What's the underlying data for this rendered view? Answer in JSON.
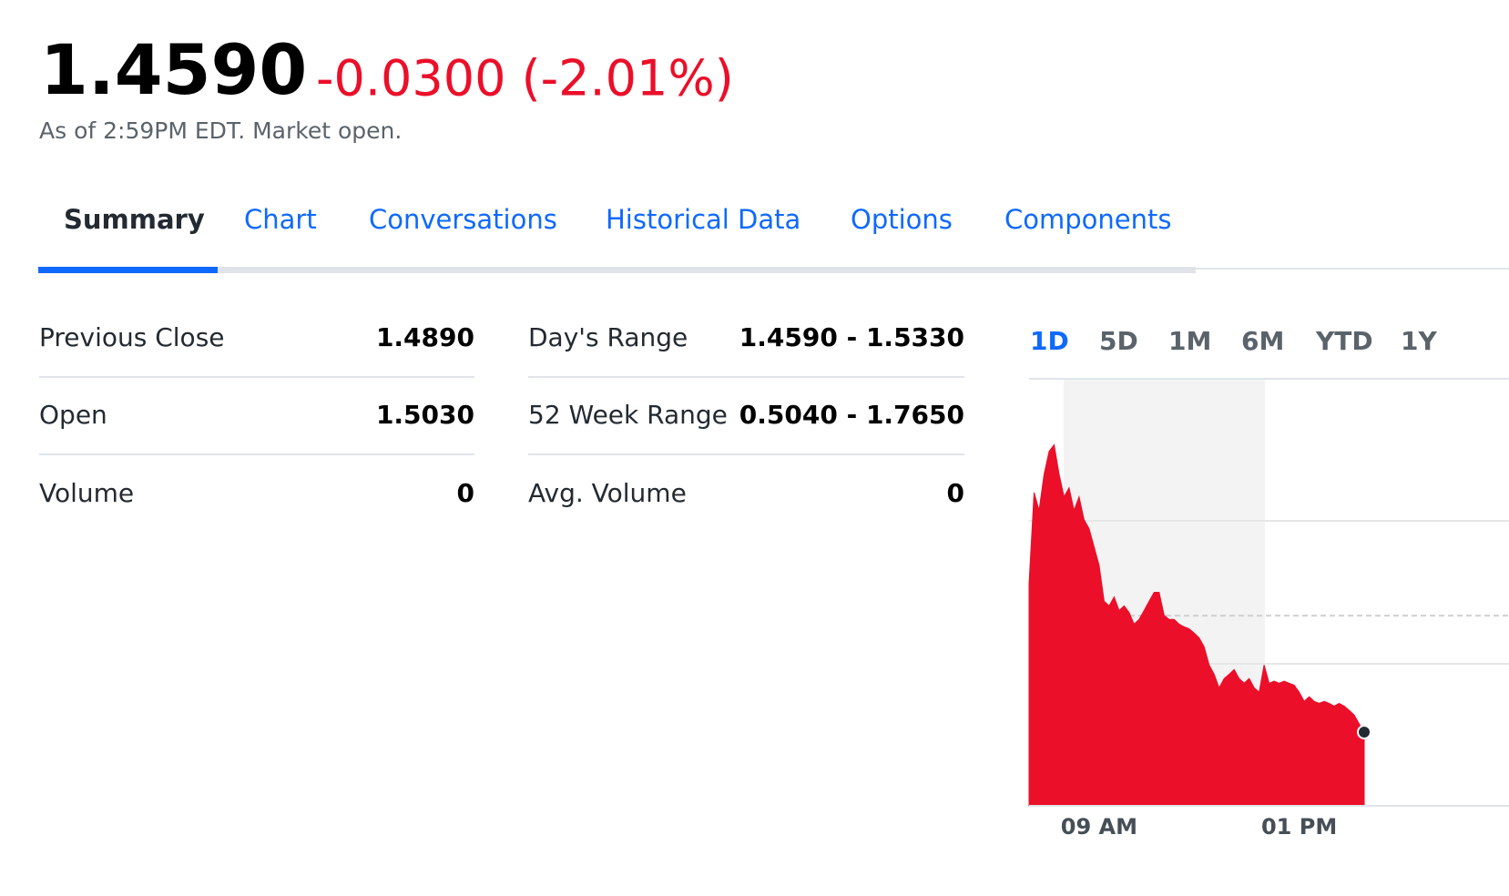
{
  "header": {
    "price": "1.4590",
    "change": "-0.0300 (-2.01%)",
    "status": "As of 2:59PM EDT. Market open."
  },
  "tabs": [
    "Summary",
    "Chart",
    "Conversations",
    "Historical Data",
    "Options",
    "Components"
  ],
  "stats": {
    "left": [
      {
        "label": "Previous Close",
        "value": "1.4890"
      },
      {
        "label": "Open",
        "value": "1.5030"
      },
      {
        "label": "Volume",
        "value": "0"
      }
    ],
    "right": [
      {
        "label": "Day's Range",
        "value": "1.4590 - 1.5330"
      },
      {
        "label": "52 Week Range",
        "value": "0.5040 - 1.7650"
      },
      {
        "label": "Avg. Volume",
        "value": "0"
      }
    ]
  },
  "ranges": [
    "1D",
    "5D",
    "1M",
    "6M",
    "YTD",
    "1Y"
  ],
  "chart_data": {
    "type": "area",
    "color": "#eb0f29",
    "categories": [
      null,
      null,
      null,
      null,
      null,
      null,
      null,
      null,
      null,
      null,
      null,
      null,
      null,
      null,
      "09 AM",
      null,
      null,
      null,
      null,
      null,
      null,
      null,
      null,
      null,
      null,
      null,
      null,
      null,
      null,
      null,
      null,
      null,
      null,
      null,
      null,
      null,
      null,
      null,
      null,
      null,
      null,
      null,
      null,
      null,
      null,
      null,
      null,
      null,
      null,
      null,
      null,
      null,
      null,
      null,
      "01 PM",
      null,
      null,
      null,
      null,
      null,
      null,
      null,
      null,
      null,
      null,
      null,
      null,
      null
    ],
    "values": [
      1.4973,
      1.5207,
      1.5161,
      1.5254,
      1.5313,
      1.533,
      1.5254,
      1.5196,
      1.5219,
      1.5161,
      1.5196,
      1.5137,
      1.5114,
      1.5067,
      1.502,
      1.4927,
      1.4915,
      1.4938,
      1.4903,
      1.4915,
      1.4898,
      1.4868,
      1.488,
      1.4903,
      1.4927,
      1.495,
      1.495,
      1.4891,
      1.488,
      1.488,
      1.4868,
      1.4861,
      1.4856,
      1.4845,
      1.4833,
      1.481,
      1.4763,
      1.4739,
      1.4704,
      1.4728,
      1.4739,
      1.4751,
      1.4728,
      1.4716,
      1.4728,
      1.4704,
      1.4693,
      1.4763,
      1.4716,
      1.4721,
      1.4716,
      1.4721,
      1.4716,
      1.4711,
      1.4693,
      1.4669,
      1.4681,
      1.4669,
      1.4664,
      1.4669,
      1.4664,
      1.4657,
      1.4664,
      1.4657,
      1.4646,
      1.4634,
      1.4611,
      1.459
    ],
    "ylim": [
      1.44,
      1.55
    ]
  }
}
